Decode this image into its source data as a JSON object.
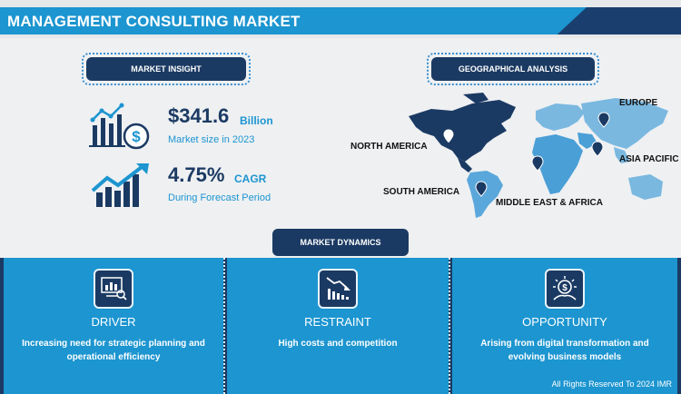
{
  "title": "MANAGEMENT CONSULTING MARKET",
  "market_insight": {
    "label": "MARKET INSIGHT",
    "stat1": {
      "value": "$341.6",
      "unit": "Billion",
      "caption": "Market size in 2023",
      "icon": "chart-dollar-icon"
    },
    "stat2": {
      "value": "4.75%",
      "unit": "CAGR",
      "caption": "During Forecast Period",
      "icon": "growth-arrow-icon"
    }
  },
  "geo": {
    "label": "GEOGRAPHICAL ANALYSIS",
    "regions": {
      "north_america": "NORTH AMERICA",
      "europe": "EUROPE",
      "asia_pacific": "ASIA PACIFIC",
      "south_america": "SOUTH AMERICA",
      "mea": "MIDDLE EAST & AFRICA"
    }
  },
  "dynamics": {
    "label": "MARKET DYNAMICS",
    "driver": {
      "title": "DRIVER",
      "desc": "Increasing need for strategic planning and operational efficiency",
      "icon": "analysis-icon"
    },
    "restraint": {
      "title": "RESTRAINT",
      "desc": "High costs and competition",
      "icon": "declining-chart-icon"
    },
    "opportunity": {
      "title": "OPPORTUNITY",
      "desc": "Arising from digital transformation and evolving business models",
      "icon": "idea-dollar-icon"
    }
  },
  "footer": "All Rights Reserved To 2024 IMR",
  "colors": {
    "navy": "#1b3a63",
    "blue": "#1c95d0",
    "light_blue": "#7ab8e0"
  }
}
